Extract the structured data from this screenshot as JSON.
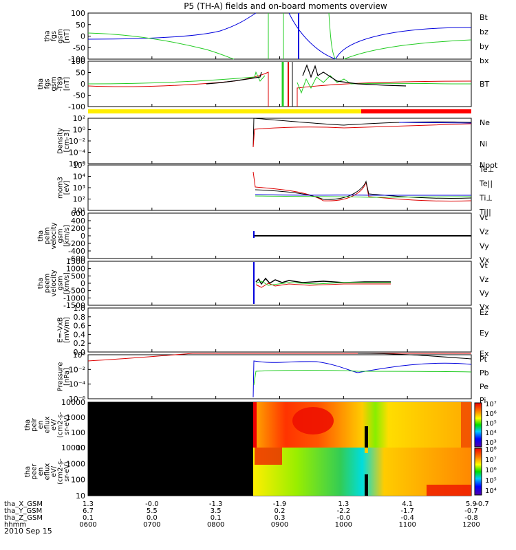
{
  "title": "P5 (TH-A) fields and on-board moments overview",
  "date": "2010 Sep 15",
  "colors": {
    "black": "#000000",
    "red": "#dd0000",
    "green": "#22cc22",
    "blue": "#0000dd",
    "yellow": "#ffee00",
    "barRed": "#ff0000"
  },
  "time_ticks": [
    "0600",
    "0700",
    "0800",
    "0900",
    "1000",
    "1100",
    "1200"
  ],
  "ephemeris": [
    {
      "label": "tha_X_GSM",
      "values": [
        "1.3",
        "-0.0",
        "-1.3",
        "-1.9",
        "1.3",
        "4.1",
        "5.9"
      ],
      "last": "-0.7"
    },
    {
      "label": "tha_Y_GSM",
      "values": [
        "6.7",
        "5.5",
        "3.5",
        "0.2",
        "-2.2",
        "-1.7",
        "-0.7"
      ],
      "last": ""
    },
    {
      "label": "tha_Z_GSM",
      "values": [
        "0.1",
        "0.0",
        "0.1",
        "0.3",
        "-0.0",
        "-0.4",
        "-0.8"
      ],
      "last": ""
    },
    {
      "label": "hhmm",
      "values": [
        "0600",
        "0700",
        "0800",
        "0900",
        "1000",
        "1100",
        "1200"
      ],
      "last": ""
    }
  ],
  "chart_data": [
    {
      "type": "line",
      "ylabel": [
        "tha",
        "fgs",
        "gsm",
        "[nT]"
      ],
      "yticks": [
        "100",
        "50",
        "0",
        "-50",
        "-100"
      ],
      "ylim": [
        -100,
        100
      ],
      "legend": [
        {
          "name": "Bt",
          "color": "#000000"
        },
        {
          "name": "bz",
          "color": "#dd0000"
        },
        {
          "name": "by",
          "color": "#22cc22"
        },
        {
          "name": "bx",
          "color": "#0000dd"
        }
      ]
    },
    {
      "type": "line",
      "ylabel": [
        "tha",
        "fgs",
        "gsm",
        "-T89",
        "[nT]"
      ],
      "yticks": [
        "100",
        "50",
        "0",
        "-50",
        "-100"
      ],
      "ylim": [
        -120,
        100
      ],
      "legend": [
        {
          "name": "BT",
          "color": "#000000"
        }
      ]
    },
    {
      "type": "line",
      "ylabel": [
        "Density",
        "[cm-3]"
      ],
      "yticks": [
        "10²",
        "10⁰",
        "10⁻²",
        "10⁻⁴",
        "10⁻⁶"
      ],
      "legend": [
        {
          "name": "Ne",
          "color": "#dd0000"
        },
        {
          "name": "Ni",
          "color": "#000000"
        },
        {
          "name": "Npot",
          "color": "#0000dd"
        }
      ]
    },
    {
      "type": "line",
      "ylabel": [
        "mom3",
        "[eV]"
      ],
      "yticks": [
        "10⁵",
        "10⁴",
        "10³",
        "10²",
        "10¹"
      ],
      "legend": [
        {
          "name": "Te⊥",
          "color": "#dd0000"
        },
        {
          "name": "Te||",
          "color": "#000000"
        },
        {
          "name": "Ti⊥",
          "color": "#0000dd"
        },
        {
          "name": "Ti||",
          "color": "#22cc22"
        }
      ]
    },
    {
      "type": "line",
      "ylabel": [
        "tha",
        "peim",
        "velocity",
        "gsm",
        "[km/s]"
      ],
      "yticks": [
        "600",
        "400",
        "200",
        "0",
        "-200",
        "-400",
        "-600"
      ],
      "ylim": [
        -600,
        600
      ],
      "legend": [
        {
          "name": "Vt",
          "color": "#000000"
        },
        {
          "name": "Vz",
          "color": "#dd0000"
        },
        {
          "name": "Vy",
          "color": "#22cc22"
        },
        {
          "name": "Vx",
          "color": "#0000dd"
        }
      ]
    },
    {
      "type": "line",
      "ylabel": [
        "tha",
        "peem",
        "velocity",
        "gsm",
        "[km/s]"
      ],
      "yticks": [
        "1500",
        "1000",
        "500",
        "0",
        "-500",
        "-1000",
        "-1500"
      ],
      "ylim": [
        -1500,
        1500
      ],
      "legend": [
        {
          "name": "Vt",
          "color": "#000000"
        },
        {
          "name": "Vz",
          "color": "#dd0000"
        },
        {
          "name": "Vy",
          "color": "#22cc22"
        },
        {
          "name": "Vx",
          "color": "#0000dd"
        }
      ]
    },
    {
      "type": "line",
      "ylabel": [
        "E=-VxB",
        "[mV/m]"
      ],
      "yticks": [
        "1.0",
        "0.8",
        "0.6",
        "0.4",
        "0.2",
        "0.0"
      ],
      "ylim": [
        0,
        1
      ],
      "legend": [
        {
          "name": "Ez",
          "color": "#dd0000"
        },
        {
          "name": "Ey",
          "color": "#22cc22"
        },
        {
          "name": "Ex",
          "color": "#0000dd"
        }
      ]
    },
    {
      "type": "line",
      "ylabel": [
        "Pressure",
        "[nPa]"
      ],
      "yticks": [
        "10⁰",
        "10⁻²",
        "10⁻⁴",
        "10⁻⁶"
      ],
      "legend": [
        {
          "name": "Pt",
          "color": "#000000"
        },
        {
          "name": "Pb",
          "color": "#dd0000"
        },
        {
          "name": "Pe",
          "color": "#22cc22"
        },
        {
          "name": "Pi",
          "color": "#0000dd"
        }
      ]
    },
    {
      "type": "heatmap",
      "ylabel": [
        "tha",
        "peir",
        "en",
        "eflux",
        "eV/",
        "(cm2-s-",
        "sr-eV)"
      ],
      "yticks": [
        "10000",
        "1000",
        "100",
        "10"
      ],
      "colorbar": [
        "10⁷",
        "10⁶",
        "10⁵",
        "10⁴",
        "10³"
      ]
    },
    {
      "type": "heatmap",
      "ylabel": [
        "tha",
        "peer",
        "en",
        "eflux",
        "eV/",
        "(cm2-s-",
        "sr-eV)"
      ],
      "yticks": [
        "10000",
        "1000",
        "100",
        "10"
      ],
      "colorbar": [
        "10⁸",
        "10⁷",
        "10⁶",
        "10⁵",
        "10⁴"
      ]
    }
  ]
}
